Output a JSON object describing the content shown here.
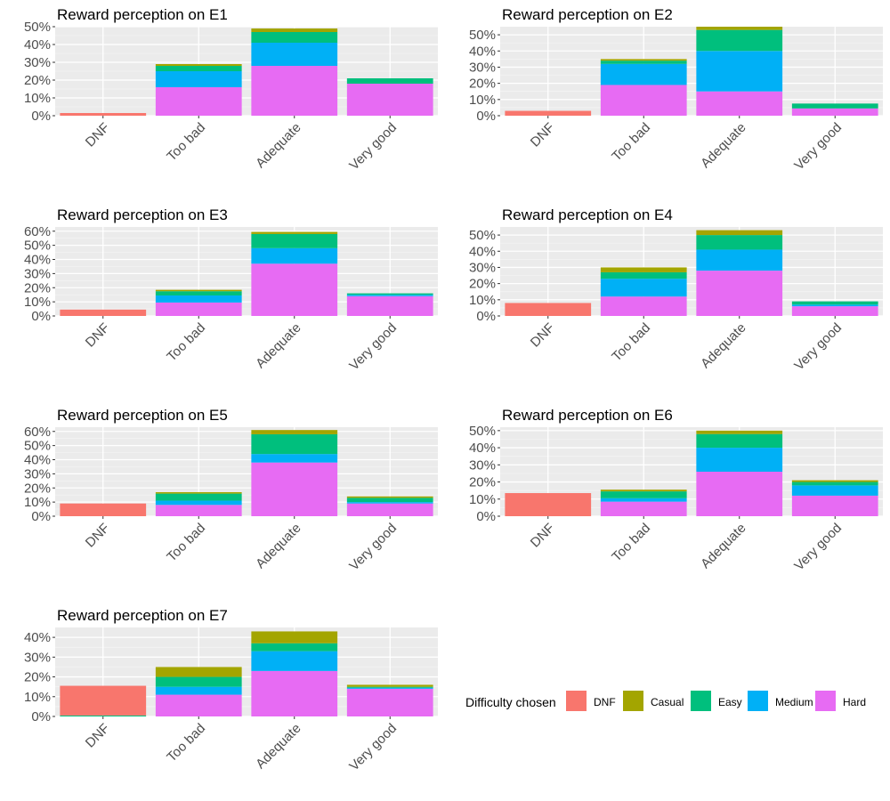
{
  "legend": {
    "title": "Difficulty chosen",
    "items": [
      {
        "key": "DNF",
        "label": "DNF",
        "color": "#F8766D"
      },
      {
        "key": "Casual",
        "label": "Casual",
        "color": "#A3A500"
      },
      {
        "key": "Easy",
        "label": "Easy",
        "color": "#00BF7D"
      },
      {
        "key": "Medium",
        "label": "Medium",
        "color": "#00B0F6"
      },
      {
        "key": "Hard",
        "label": "Hard",
        "color": "#E76BF3"
      }
    ]
  },
  "chart_data": [
    {
      "type": "bar",
      "stacked": true,
      "title": "Reward perception on E1",
      "categories": [
        "DNF",
        "Too bad",
        "Adequate",
        "Very good"
      ],
      "ylim": [
        0,
        0.5
      ],
      "yticks": [
        0,
        0.1,
        0.2,
        0.3,
        0.4,
        0.5
      ],
      "ytick_labels": [
        "0%",
        "10%",
        "20%",
        "30%",
        "40%",
        "50%"
      ],
      "series": [
        {
          "name": "DNF",
          "values": [
            0.015,
            0,
            0,
            0
          ]
        },
        {
          "name": "Casual",
          "values": [
            0,
            0.01,
            0.02,
            0
          ]
        },
        {
          "name": "Easy",
          "values": [
            0,
            0.03,
            0.06,
            0.03
          ]
        },
        {
          "name": "Medium",
          "values": [
            0,
            0.09,
            0.13,
            0
          ]
        },
        {
          "name": "Hard",
          "values": [
            0,
            0.16,
            0.28,
            0.18
          ]
        }
      ]
    },
    {
      "type": "bar",
      "stacked": true,
      "title": "Reward perception on E2",
      "categories": [
        "DNF",
        "Too bad",
        "Adequate",
        "Very good"
      ],
      "ylim": [
        0,
        0.55
      ],
      "yticks": [
        0,
        0.1,
        0.2,
        0.3,
        0.4,
        0.5
      ],
      "ytick_labels": [
        "0%",
        "10%",
        "20%",
        "30%",
        "40%",
        "50%"
      ],
      "series": [
        {
          "name": "DNF",
          "values": [
            0.03,
            0,
            0,
            0
          ]
        },
        {
          "name": "Casual",
          "values": [
            0,
            0.01,
            0.02,
            0
          ]
        },
        {
          "name": "Easy",
          "values": [
            0,
            0.02,
            0.13,
            0.03
          ]
        },
        {
          "name": "Medium",
          "values": [
            0,
            0.13,
            0.25,
            0
          ]
        },
        {
          "name": "Hard",
          "values": [
            0,
            0.19,
            0.15,
            0.045
          ]
        }
      ]
    },
    {
      "type": "bar",
      "stacked": true,
      "title": "Reward perception on E3",
      "categories": [
        "DNF",
        "Too bad",
        "Adequate",
        "Very good"
      ],
      "ylim": [
        0,
        0.63
      ],
      "yticks": [
        0,
        0.1,
        0.2,
        0.3,
        0.4,
        0.5,
        0.6
      ],
      "ytick_labels": [
        "0%",
        "10%",
        "20%",
        "30%",
        "40%",
        "50%",
        "60%"
      ],
      "series": [
        {
          "name": "DNF",
          "values": [
            0.045,
            0,
            0,
            0
          ]
        },
        {
          "name": "Casual",
          "values": [
            0,
            0.01,
            0.015,
            0
          ]
        },
        {
          "name": "Easy",
          "values": [
            0,
            0.03,
            0.1,
            0.01
          ]
        },
        {
          "name": "Medium",
          "values": [
            0,
            0.05,
            0.11,
            0.01
          ]
        },
        {
          "name": "Hard",
          "values": [
            0,
            0.095,
            0.37,
            0.14
          ]
        }
      ]
    },
    {
      "type": "bar",
      "stacked": true,
      "title": "Reward perception on E4",
      "categories": [
        "DNF",
        "Too bad",
        "Adequate",
        "Very good"
      ],
      "ylim": [
        0,
        0.55
      ],
      "yticks": [
        0,
        0.1,
        0.2,
        0.3,
        0.4,
        0.5
      ],
      "ytick_labels": [
        "0%",
        "10%",
        "20%",
        "30%",
        "40%",
        "50%"
      ],
      "series": [
        {
          "name": "DNF",
          "values": [
            0.08,
            0,
            0,
            0
          ]
        },
        {
          "name": "Casual",
          "values": [
            0,
            0.03,
            0.03,
            0
          ]
        },
        {
          "name": "Easy",
          "values": [
            0,
            0.04,
            0.09,
            0.02
          ]
        },
        {
          "name": "Medium",
          "values": [
            0,
            0.11,
            0.13,
            0.01
          ]
        },
        {
          "name": "Hard",
          "values": [
            0,
            0.12,
            0.28,
            0.06
          ]
        }
      ]
    },
    {
      "type": "bar",
      "stacked": true,
      "title": "Reward perception on E5",
      "categories": [
        "DNF",
        "Too bad",
        "Adequate",
        "Very good"
      ],
      "ylim": [
        0,
        0.63
      ],
      "yticks": [
        0,
        0.1,
        0.2,
        0.3,
        0.4,
        0.5,
        0.6
      ],
      "ytick_labels": [
        "0%",
        "10%",
        "20%",
        "30%",
        "40%",
        "50%",
        "60%"
      ],
      "series": [
        {
          "name": "DNF",
          "values": [
            0.09,
            0,
            0,
            0
          ]
        },
        {
          "name": "Casual",
          "values": [
            0,
            0.01,
            0.03,
            0.01
          ]
        },
        {
          "name": "Easy",
          "values": [
            0,
            0.05,
            0.14,
            0.03
          ]
        },
        {
          "name": "Medium",
          "values": [
            0,
            0.03,
            0.06,
            0.01
          ]
        },
        {
          "name": "Hard",
          "values": [
            0,
            0.08,
            0.38,
            0.09
          ]
        }
      ]
    },
    {
      "type": "bar",
      "stacked": true,
      "title": "Reward perception on E6",
      "categories": [
        "DNF",
        "Too bad",
        "Adequate",
        "Very good"
      ],
      "ylim": [
        0,
        0.52
      ],
      "yticks": [
        0,
        0.1,
        0.2,
        0.3,
        0.4,
        0.5
      ],
      "ytick_labels": [
        "0%",
        "10%",
        "20%",
        "30%",
        "40%",
        "50%"
      ],
      "series": [
        {
          "name": "DNF",
          "values": [
            0.135,
            0,
            0,
            0
          ]
        },
        {
          "name": "Casual",
          "values": [
            0,
            0.01,
            0.02,
            0.01
          ]
        },
        {
          "name": "Easy",
          "values": [
            0,
            0.04,
            0.08,
            0.02
          ]
        },
        {
          "name": "Medium",
          "values": [
            0,
            0.02,
            0.14,
            0.06
          ]
        },
        {
          "name": "Hard",
          "values": [
            0,
            0.085,
            0.26,
            0.12
          ]
        }
      ]
    },
    {
      "type": "bar",
      "stacked": true,
      "title": "Reward perception on E7",
      "categories": [
        "DNF",
        "Too bad",
        "Adequate",
        "Very good"
      ],
      "ylim": [
        0,
        0.45
      ],
      "yticks": [
        0,
        0.1,
        0.2,
        0.3,
        0.4
      ],
      "ytick_labels": [
        "0%",
        "10%",
        "20%",
        "30%",
        "40%"
      ],
      "series": [
        {
          "name": "DNF",
          "values": [
            0.15,
            0,
            0,
            0
          ]
        },
        {
          "name": "Casual",
          "values": [
            0,
            0.05,
            0.06,
            0.01
          ]
        },
        {
          "name": "Easy",
          "values": [
            0.005,
            0.05,
            0.04,
            0.005
          ]
        },
        {
          "name": "Medium",
          "values": [
            0,
            0.04,
            0.1,
            0.005
          ]
        },
        {
          "name": "Hard",
          "values": [
            0,
            0.11,
            0.23,
            0.14
          ]
        }
      ]
    }
  ]
}
